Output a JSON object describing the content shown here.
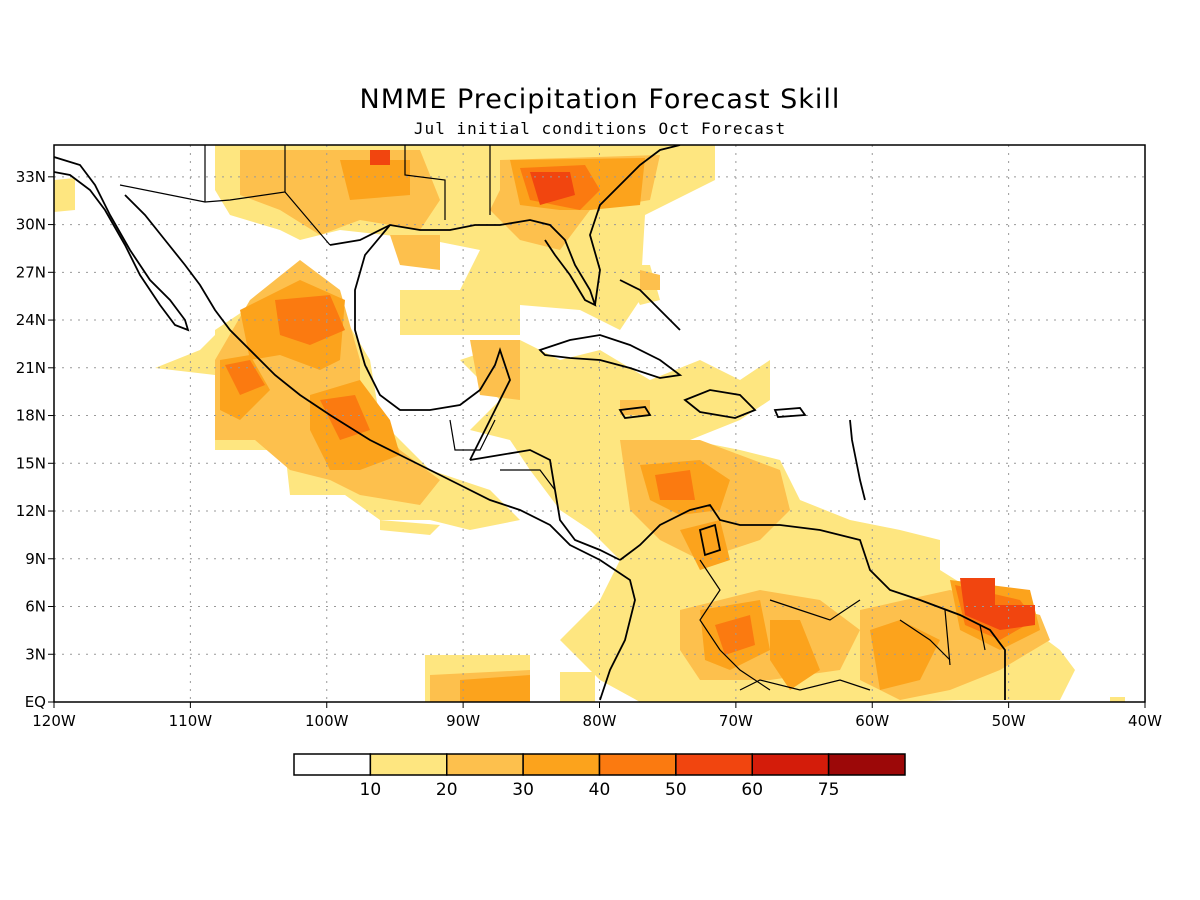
{
  "header": {
    "title": "NMME Precipitation Forecast Skill",
    "subtitle": "Jul initial conditions  Oct Forecast"
  },
  "map": {
    "lon_range": [
      -120,
      -40
    ],
    "lat_range": [
      0,
      35
    ],
    "x_ticks": [
      "120W",
      "110W",
      "100W",
      "90W",
      "80W",
      "70W",
      "60W",
      "50W",
      "40W"
    ],
    "y_ticks": [
      "EQ",
      "3N",
      "6N",
      "9N",
      "12N",
      "15N",
      "18N",
      "21N",
      "24N",
      "27N",
      "30N",
      "33N"
    ],
    "grid": "dotted",
    "variable": "precipitation forecast skill"
  },
  "colorbar": {
    "levels": [
      "10",
      "20",
      "30",
      "40",
      "50",
      "60",
      "75"
    ],
    "colors": [
      "#ffffff",
      "#fee680",
      "#fdc04d",
      "#fca31c",
      "#fb7a10",
      "#f1450f",
      "#d41c0a",
      "#9c0808"
    ]
  },
  "shading_regions": [
    {
      "level": 1,
      "label": "10-20"
    },
    {
      "level": 2,
      "label": "20-30"
    },
    {
      "level": 3,
      "label": "30-40"
    },
    {
      "level": 4,
      "label": "40-50"
    },
    {
      "level": 5,
      "label": "50-60"
    }
  ]
}
